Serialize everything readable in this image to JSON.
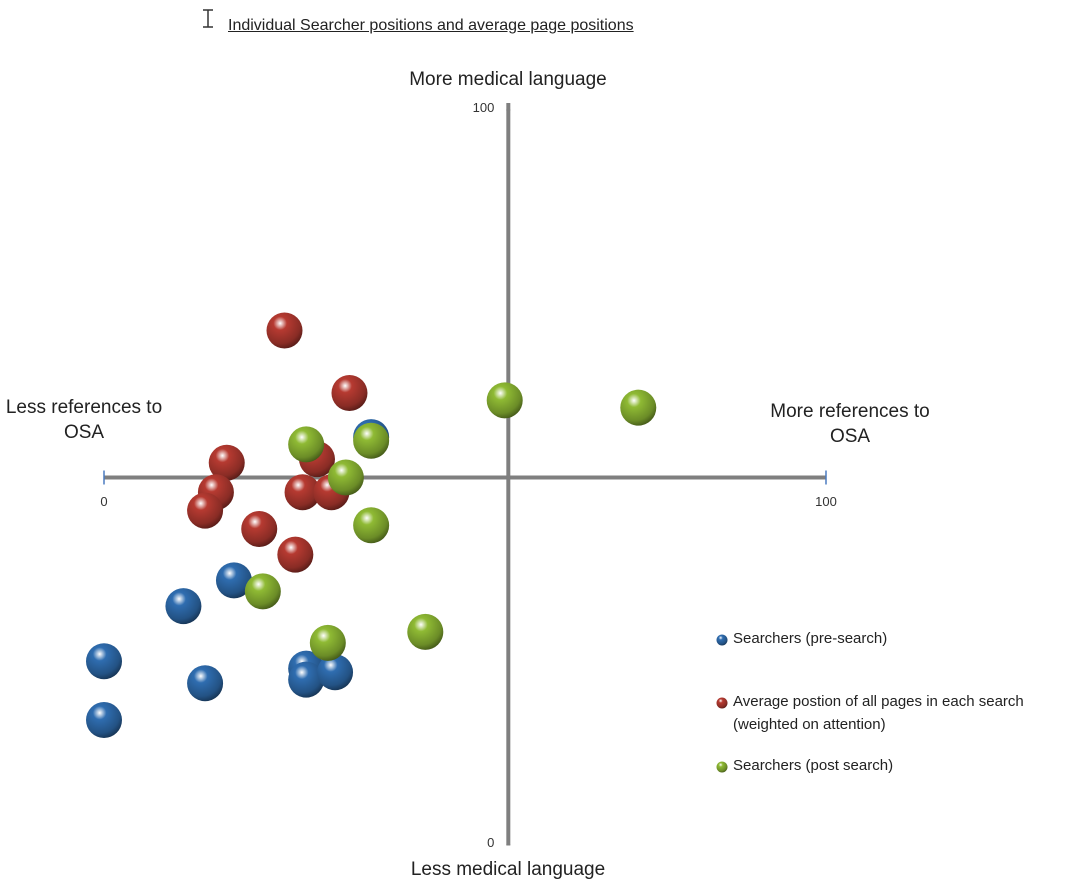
{
  "chart_data": {
    "type": "scatter",
    "title": "Individual Searcher positions and average page positions",
    "y_top_label": "More medical language",
    "y_bottom_label": "Less medical language",
    "x_left_label": "Less references to OSA",
    "x_right_label": "More references to OSA",
    "xlim": [
      0,
      100
    ],
    "xticks": [
      0,
      100
    ],
    "ylim": [
      0,
      100
    ],
    "yticks": [
      0,
      100
    ],
    "x_axis_crosses_at": 50,
    "y_axis_crosses_at": 56,
    "legend": "right",
    "series": [
      {
        "name": "Searchers (pre-search)",
        "color": "#2f6db0",
        "x": [
          37,
          18,
          11,
          0,
          14,
          0,
          28,
          28,
          32
        ],
        "values": [
          55.5,
          36,
          32.5,
          25,
          22,
          17,
          24,
          22.5,
          23.5
        ]
      },
      {
        "name": "Average postion of all pages in each search (weighted on attention)",
        "color": "#b63a31",
        "x": [
          25,
          34,
          29.5,
          17,
          15.5,
          14,
          27.5,
          31.5,
          21.5,
          26.5
        ],
        "values": [
          70,
          61.5,
          52.5,
          52,
          48,
          45.5,
          48,
          48,
          43,
          39.5
        ]
      },
      {
        "name": "Searchers (post search)",
        "color": "#8fba34",
        "x": [
          55.5,
          74,
          28,
          37,
          33.5,
          37,
          22,
          31,
          44.5
        ],
        "values": [
          60.5,
          59.5,
          54.5,
          55,
          50,
          43.5,
          34.5,
          27.5,
          29
        ]
      }
    ]
  }
}
